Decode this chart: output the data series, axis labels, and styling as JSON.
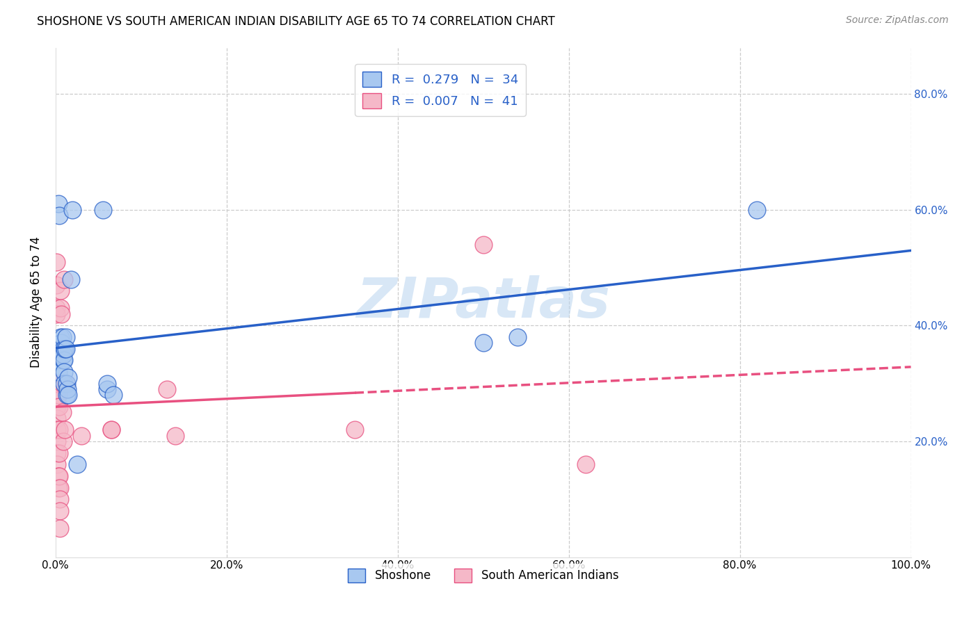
{
  "title": "SHOSHONE VS SOUTH AMERICAN INDIAN DISABILITY AGE 65 TO 74 CORRELATION CHART",
  "source": "Source: ZipAtlas.com",
  "ylabel": "Disability Age 65 to 74",
  "background_color": "#ffffff",
  "watermark": "ZIPatlas",
  "shoshone_color": "#a8c8f0",
  "south_american_color": "#f5b8c8",
  "shoshone_line_color": "#2860c8",
  "south_american_line_color": "#e85080",
  "shoshone_R": 0.279,
  "shoshone_N": 34,
  "south_american_R": 0.007,
  "south_american_N": 41,
  "shoshone_scatter": [
    [
      0.002,
      0.34
    ],
    [
      0.003,
      0.32
    ],
    [
      0.003,
      0.61
    ],
    [
      0.004,
      0.59
    ],
    [
      0.005,
      0.35
    ],
    [
      0.006,
      0.38
    ],
    [
      0.006,
      0.35
    ],
    [
      0.007,
      0.36
    ],
    [
      0.007,
      0.37
    ],
    [
      0.008,
      0.38
    ],
    [
      0.009,
      0.34
    ],
    [
      0.009,
      0.36
    ],
    [
      0.009,
      0.35
    ],
    [
      0.01,
      0.34
    ],
    [
      0.01,
      0.32
    ],
    [
      0.01,
      0.3
    ],
    [
      0.011,
      0.36
    ],
    [
      0.012,
      0.38
    ],
    [
      0.012,
      0.36
    ],
    [
      0.013,
      0.3
    ],
    [
      0.013,
      0.28
    ],
    [
      0.014,
      0.29
    ],
    [
      0.015,
      0.31
    ],
    [
      0.015,
      0.28
    ],
    [
      0.018,
      0.48
    ],
    [
      0.02,
      0.6
    ],
    [
      0.025,
      0.16
    ],
    [
      0.055,
      0.6
    ],
    [
      0.06,
      0.29
    ],
    [
      0.06,
      0.3
    ],
    [
      0.068,
      0.28
    ],
    [
      0.5,
      0.37
    ],
    [
      0.54,
      0.38
    ],
    [
      0.82,
      0.6
    ]
  ],
  "south_american_scatter": [
    [
      0.001,
      0.51
    ],
    [
      0.001,
      0.47
    ],
    [
      0.001,
      0.43
    ],
    [
      0.001,
      0.42
    ],
    [
      0.002,
      0.3
    ],
    [
      0.002,
      0.28
    ],
    [
      0.002,
      0.26
    ],
    [
      0.002,
      0.24
    ],
    [
      0.002,
      0.22
    ],
    [
      0.002,
      0.2
    ],
    [
      0.002,
      0.18
    ],
    [
      0.002,
      0.16
    ],
    [
      0.003,
      0.14
    ],
    [
      0.003,
      0.12
    ],
    [
      0.003,
      0.3
    ],
    [
      0.003,
      0.28
    ],
    [
      0.004,
      0.26
    ],
    [
      0.004,
      0.22
    ],
    [
      0.004,
      0.18
    ],
    [
      0.004,
      0.14
    ],
    [
      0.005,
      0.12
    ],
    [
      0.005,
      0.1
    ],
    [
      0.005,
      0.08
    ],
    [
      0.005,
      0.05
    ],
    [
      0.006,
      0.46
    ],
    [
      0.006,
      0.43
    ],
    [
      0.007,
      0.42
    ],
    [
      0.008,
      0.3
    ],
    [
      0.008,
      0.25
    ],
    [
      0.009,
      0.2
    ],
    [
      0.01,
      0.48
    ],
    [
      0.011,
      0.22
    ],
    [
      0.012,
      0.3
    ],
    [
      0.03,
      0.21
    ],
    [
      0.065,
      0.22
    ],
    [
      0.065,
      0.22
    ],
    [
      0.13,
      0.29
    ],
    [
      0.14,
      0.21
    ],
    [
      0.35,
      0.22
    ],
    [
      0.5,
      0.54
    ],
    [
      0.62,
      0.16
    ]
  ],
  "xlim": [
    0,
    1.0
  ],
  "ylim": [
    0,
    0.88
  ],
  "xticks": [
    0.0,
    0.2,
    0.4,
    0.6,
    0.8,
    1.0
  ],
  "xticklabels": [
    "0.0%",
    "20.0%",
    "40.0%",
    "60.0%",
    "80.0%",
    "100.0%"
  ],
  "yticks_right": [
    0.2,
    0.4,
    0.6,
    0.8
  ],
  "yticklabels_right": [
    "20.0%",
    "40.0%",
    "60.0%",
    "80.0%"
  ],
  "grid_color": "#cccccc",
  "legend_shoshone_label": "Shoshone",
  "legend_south_label": "South American Indians"
}
